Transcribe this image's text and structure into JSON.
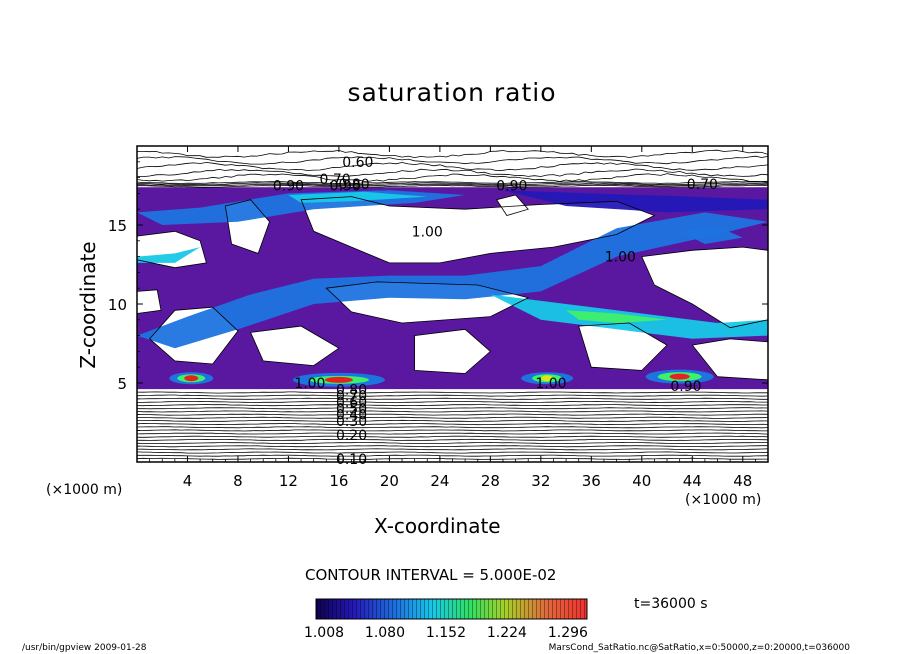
{
  "chart_data": {
    "type": "heatmap",
    "title": "saturation ratio",
    "xlabel": "X-coordinate",
    "ylabel": "Z-coordinate",
    "x_unit": "(×1000 m)",
    "y_unit": "(×1000 m)",
    "xlim": [
      0,
      50
    ],
    "ylim": [
      0,
      20
    ],
    "x_ticks": [
      4,
      8,
      12,
      16,
      20,
      24,
      28,
      32,
      36,
      40,
      44,
      48
    ],
    "y_ticks": [
      5,
      10,
      15
    ],
    "contour_interval_text": "CONTOUR INTERVAL = 5.000E-02",
    "colorbar": {
      "ticks": [
        "1.008",
        "1.080",
        "1.152",
        "1.224",
        "1.296"
      ],
      "range": [
        1.008,
        1.296
      ]
    },
    "contour_labels": [
      {
        "text": "0.60",
        "x": 17.5,
        "y": 19.0
      },
      {
        "text": "0.70",
        "x": 15.7,
        "y": 17.9
      },
      {
        "text": "0.80",
        "x": 17.2,
        "y": 17.6
      },
      {
        "text": "0.90",
        "x": 16.5,
        "y": 17.5
      },
      {
        "text": "0.90",
        "x": 12.0,
        "y": 17.5
      },
      {
        "text": "0.70",
        "x": 44.8,
        "y": 17.6
      },
      {
        "text": "0.90",
        "x": 29.7,
        "y": 17.5
      },
      {
        "text": "1.00",
        "x": 23.0,
        "y": 14.6
      },
      {
        "text": "1.00",
        "x": 38.3,
        "y": 13.0
      },
      {
        "text": "1.00",
        "x": 13.7,
        "y": 5.0
      },
      {
        "text": "1.00",
        "x": 32.8,
        "y": 5.0
      },
      {
        "text": "0.90",
        "x": 43.5,
        "y": 4.8
      },
      {
        "text": "0.80",
        "x": 17.0,
        "y": 4.6
      },
      {
        "text": "0.70",
        "x": 17.0,
        "y": 4.2
      },
      {
        "text": "0.60",
        "x": 17.0,
        "y": 3.8
      },
      {
        "text": "0.50",
        "x": 17.0,
        "y": 3.4
      },
      {
        "text": "0.40",
        "x": 17.0,
        "y": 3.0
      },
      {
        "text": "0.30",
        "x": 17.0,
        "y": 2.6
      },
      {
        "text": "0.20",
        "x": 17.0,
        "y": 1.7
      },
      {
        "text": "0.10",
        "x": 17.0,
        "y": 0.2
      }
    ],
    "grid": false
  },
  "time_label": "t=36000 s",
  "footer": {
    "left": "/usr/bin/gpview   2009-01-28",
    "right": "MarsCond_SatRatio.nc@SatRatio,x=0:50000,z=0:20000,t=036000"
  },
  "colors": {
    "cmap": [
      "#10004a",
      "#2418b8",
      "#1d74e0",
      "#18d0e8",
      "#3ff06a",
      "#d8e81a",
      "#f07a3a",
      "#e82020"
    ],
    "purple": "#5a18a0",
    "frame": "#000000"
  }
}
